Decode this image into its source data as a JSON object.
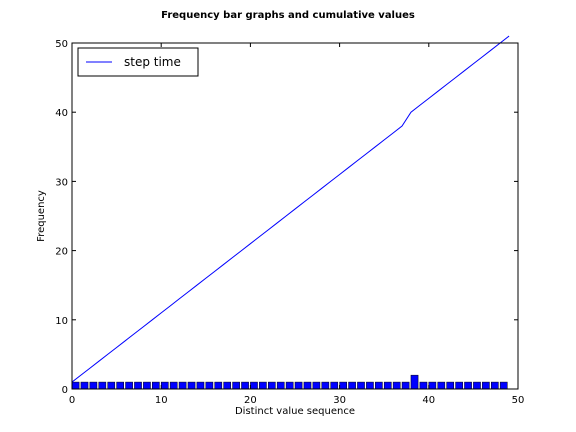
{
  "chart_data": {
    "type": "bar",
    "title": "Frequency bar graphs and cumulative values",
    "xlabel": "Distinct value sequence",
    "ylabel": "Frequency",
    "xlim": [
      0,
      50
    ],
    "ylim": [
      0,
      50
    ],
    "x_ticks": [
      0,
      10,
      20,
      30,
      40,
      50
    ],
    "y_ticks": [
      0,
      10,
      20,
      30,
      40,
      50
    ],
    "grid": false,
    "legend_position": "top-left",
    "bar_color": "#0000ff",
    "line_color": "#0000ff",
    "categories": [
      0,
      1,
      2,
      3,
      4,
      5,
      6,
      7,
      8,
      9,
      10,
      11,
      12,
      13,
      14,
      15,
      16,
      17,
      18,
      19,
      20,
      21,
      22,
      23,
      24,
      25,
      26,
      27,
      28,
      29,
      30,
      31,
      32,
      33,
      34,
      35,
      36,
      37,
      38,
      39,
      40,
      41,
      42,
      43,
      44,
      45,
      46,
      47,
      48
    ],
    "series": [
      {
        "values": [
          1,
          1,
          1,
          1,
          1,
          1,
          1,
          1,
          1,
          1,
          1,
          1,
          1,
          1,
          1,
          1,
          1,
          1,
          1,
          1,
          1,
          1,
          1,
          1,
          1,
          1,
          1,
          1,
          1,
          1,
          1,
          1,
          1,
          1,
          1,
          1,
          1,
          1,
          2,
          1,
          1,
          1,
          1,
          1,
          1,
          1,
          1,
          1,
          1
        ]
      },
      {
        "name": "step time",
        "type": "line",
        "x": [
          0,
          1,
          2,
          3,
          4,
          5,
          6,
          7,
          8,
          9,
          10,
          11,
          12,
          13,
          14,
          15,
          16,
          17,
          18,
          19,
          20,
          21,
          22,
          23,
          24,
          25,
          26,
          27,
          28,
          29,
          30,
          31,
          32,
          33,
          34,
          35,
          36,
          37,
          38,
          39,
          40,
          41,
          42,
          43,
          44,
          45,
          46,
          47,
          48,
          49
        ],
        "values": [
          1,
          2,
          3,
          4,
          5,
          6,
          7,
          8,
          9,
          10,
          11,
          12,
          13,
          14,
          15,
          16,
          17,
          18,
          19,
          20,
          21,
          22,
          23,
          24,
          25,
          26,
          27,
          28,
          29,
          30,
          31,
          32,
          33,
          34,
          35,
          36,
          37,
          38,
          40,
          41,
          42,
          43,
          44,
          45,
          46,
          47,
          48,
          49,
          50,
          51
        ]
      }
    ]
  }
}
